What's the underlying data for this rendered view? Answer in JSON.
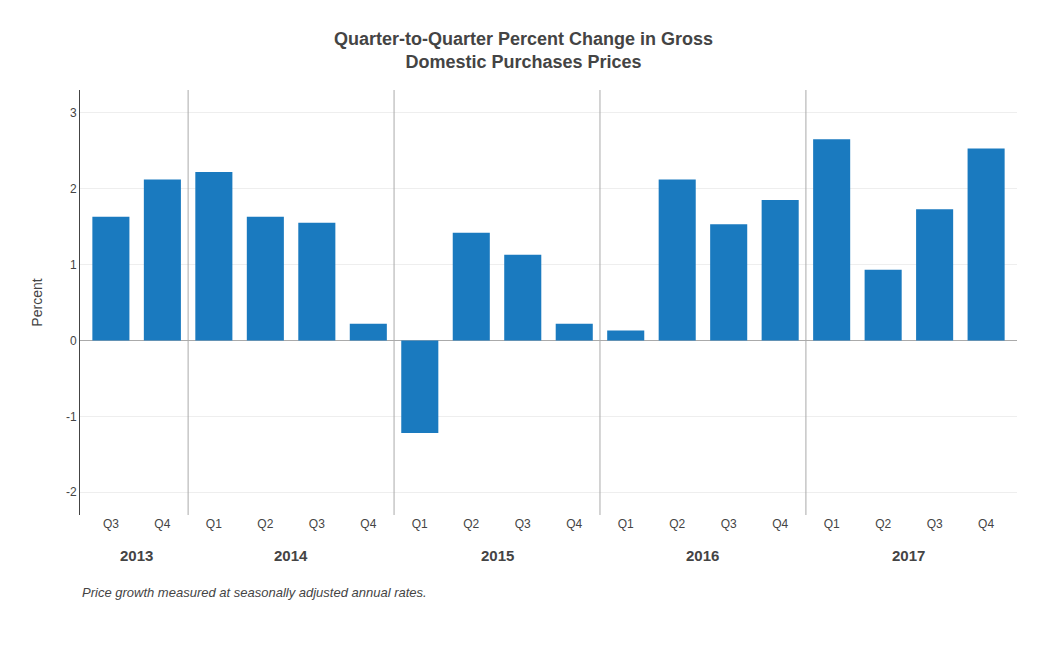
{
  "chart_data": {
    "type": "bar",
    "title": "Quarter-to-Quarter Percent Change in Gross\nDomestic Purchases Prices",
    "ylabel": "Percent",
    "footnote": "Price growth measured at seasonally adjusted annual rates.",
    "categories": [
      "Q3",
      "Q4",
      "Q1",
      "Q2",
      "Q3",
      "Q4",
      "Q1",
      "Q2",
      "Q3",
      "Q4",
      "Q1",
      "Q2",
      "Q3",
      "Q4",
      "Q1",
      "Q2",
      "Q3",
      "Q4"
    ],
    "values": [
      1.63,
      2.12,
      2.22,
      1.63,
      1.55,
      0.22,
      -1.22,
      1.42,
      1.13,
      0.22,
      0.13,
      2.12,
      1.53,
      1.85,
      2.65,
      0.93,
      1.73,
      2.53
    ],
    "groups": [
      {
        "label": "2013",
        "count": 2
      },
      {
        "label": "2014",
        "count": 4
      },
      {
        "label": "2015",
        "count": 4
      },
      {
        "label": "2016",
        "count": 4
      },
      {
        "label": "2017",
        "count": 4
      }
    ],
    "color": "#1a7abf",
    "ylim": [
      -2.3,
      3.3
    ],
    "yticks": [
      -2,
      -1,
      0,
      1,
      2,
      3
    ],
    "grid": true
  }
}
